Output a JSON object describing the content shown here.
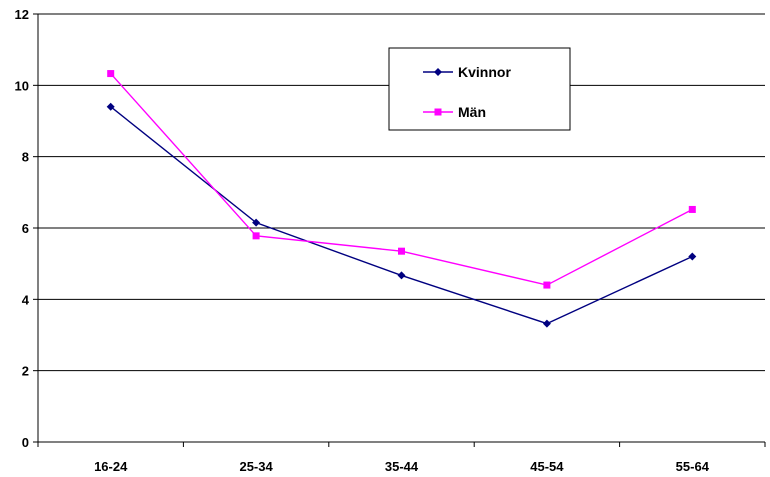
{
  "chart_data": {
    "type": "line",
    "categories": [
      "16-24",
      "25-34",
      "35-44",
      "45-54",
      "55-64"
    ],
    "series": [
      {
        "name": "Kvinnor",
        "values": [
          9.4,
          6.15,
          4.67,
          3.32,
          5.2
        ],
        "color": "#000080",
        "marker": "diamond"
      },
      {
        "name": "Män",
        "values": [
          10.33,
          5.78,
          5.35,
          4.4,
          6.52
        ],
        "color": "#ff00ff",
        "marker": "square"
      }
    ],
    "ylim": [
      0,
      12
    ],
    "yticks": [
      "0",
      "2",
      "4",
      "6",
      "8",
      "10",
      "12"
    ],
    "grid": true,
    "legend_position": "top-right",
    "title": "",
    "xlabel": "",
    "ylabel": ""
  }
}
